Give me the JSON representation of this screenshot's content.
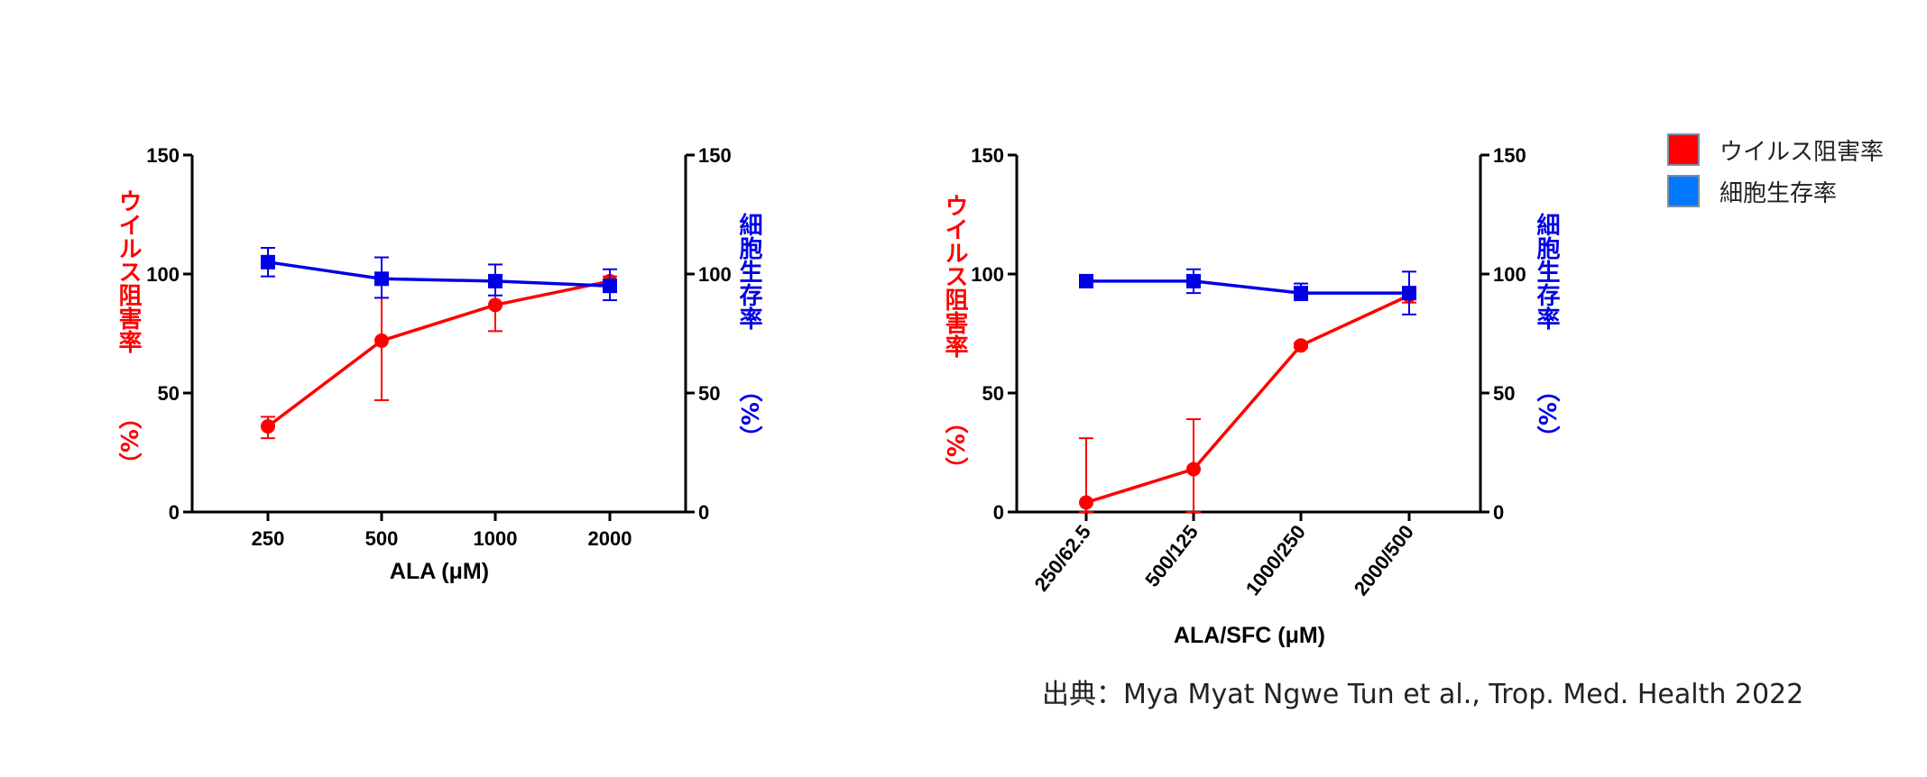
{
  "chart_data": [
    {
      "type": "line",
      "xlabel": "ALA  (μM)",
      "categories": [
        "250",
        "500",
        "1000",
        "2000"
      ],
      "ylabel_left": "ウイルス阻害率（%）",
      "ylabel_right": "細胞生存率（%）",
      "ylim": [
        0,
        150
      ],
      "yticks": [
        "0",
        "50",
        "100",
        "150"
      ],
      "series": [
        {
          "name": "ウイルス阻害率",
          "axis": "left",
          "color": "#ff0000",
          "marker": "circle",
          "values": [
            36,
            72,
            87,
            97
          ],
          "err_low": [
            31,
            47,
            76,
            93
          ],
          "err_high": [
            40,
            97,
            98,
            99
          ]
        },
        {
          "name": "細胞生存率",
          "axis": "right",
          "color": "#0000e6",
          "marker": "square",
          "values": [
            105,
            98,
            97,
            95
          ],
          "err_low": [
            99,
            90,
            91,
            89
          ],
          "err_high": [
            111,
            107,
            104,
            102
          ]
        }
      ]
    },
    {
      "type": "line",
      "xlabel": "ALA/SFC (μM)",
      "categories": [
        "250/62.5",
        "500/125",
        "1000/250",
        "2000/500"
      ],
      "ylabel_left": "ウイルス阻害率（%）",
      "ylabel_right": "細胞生存率（%）",
      "ylim": [
        0,
        150
      ],
      "yticks": [
        "0",
        "50",
        "100",
        "150"
      ],
      "series": [
        {
          "name": "ウイルス阻害率",
          "axis": "left",
          "color": "#ff0000",
          "marker": "circle",
          "values": [
            4,
            18,
            70,
            91
          ],
          "err_low": [
            0,
            0,
            69,
            88
          ],
          "err_high": [
            31,
            39,
            71,
            94
          ]
        },
        {
          "name": "細胞生存率",
          "axis": "right",
          "color": "#0000e6",
          "marker": "square",
          "values": [
            97,
            97,
            92,
            92
          ],
          "err_low": [
            95,
            92,
            89,
            83
          ],
          "err_high": [
            99,
            102,
            96,
            101
          ]
        }
      ]
    }
  ],
  "legend": [
    {
      "label": "ウイルス阻害率",
      "color": "#ff0000"
    },
    {
      "label": "細胞生存率",
      "color": "#0078ff"
    }
  ],
  "source": "出典：Mya Myat Ngwe Tun et al., Trop. Med. Health 2022"
}
